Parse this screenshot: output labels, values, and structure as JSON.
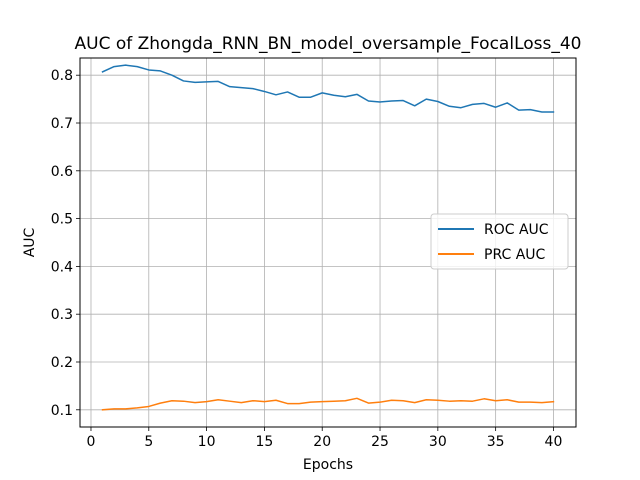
{
  "chart_data": {
    "type": "line",
    "title": "AUC of Zhongda_RNN_BN_model_oversample_FocalLoss_40",
    "xlabel": "Epochs",
    "ylabel": "AUC",
    "xlim": [
      -0.95,
      41.95
    ],
    "ylim": [
      0.064,
      0.836
    ],
    "xticks": [
      0,
      5,
      10,
      15,
      20,
      25,
      30,
      35,
      40
    ],
    "xtick_labels": [
      "0",
      "5",
      "10",
      "15",
      "20",
      "25",
      "30",
      "35",
      "40"
    ],
    "yticks": [
      0.1,
      0.2,
      0.3,
      0.4,
      0.5,
      0.6,
      0.7,
      0.8
    ],
    "ytick_labels": [
      "0.1",
      "0.2",
      "0.3",
      "0.4",
      "0.5",
      "0.6",
      "0.7",
      "0.8"
    ],
    "grid": true,
    "legend_position": "center-right",
    "x": [
      1,
      2,
      3,
      4,
      5,
      6,
      7,
      8,
      9,
      10,
      11,
      12,
      13,
      14,
      15,
      16,
      17,
      18,
      19,
      20,
      21,
      22,
      23,
      24,
      25,
      26,
      27,
      28,
      29,
      30,
      31,
      32,
      33,
      34,
      35,
      36,
      37,
      38,
      39,
      40
    ],
    "series": [
      {
        "name": "ROC AUC",
        "color": "#1f77b4",
        "values": [
          0.807,
          0.818,
          0.821,
          0.818,
          0.811,
          0.809,
          0.8,
          0.788,
          0.785,
          0.786,
          0.787,
          0.776,
          0.774,
          0.772,
          0.766,
          0.759,
          0.765,
          0.754,
          0.754,
          0.763,
          0.758,
          0.755,
          0.76,
          0.746,
          0.744,
          0.746,
          0.747,
          0.736,
          0.75,
          0.745,
          0.735,
          0.732,
          0.739,
          0.741,
          0.733,
          0.742,
          0.727,
          0.728,
          0.723,
          0.723
        ]
      },
      {
        "name": "PRC AUC",
        "color": "#ff7f0e",
        "values": [
          0.1,
          0.102,
          0.102,
          0.104,
          0.107,
          0.114,
          0.119,
          0.118,
          0.115,
          0.117,
          0.121,
          0.118,
          0.115,
          0.119,
          0.117,
          0.12,
          0.113,
          0.113,
          0.116,
          0.117,
          0.118,
          0.119,
          0.124,
          0.114,
          0.116,
          0.12,
          0.119,
          0.115,
          0.121,
          0.12,
          0.118,
          0.119,
          0.118,
          0.123,
          0.119,
          0.121,
          0.116,
          0.116,
          0.115,
          0.117
        ]
      }
    ]
  }
}
